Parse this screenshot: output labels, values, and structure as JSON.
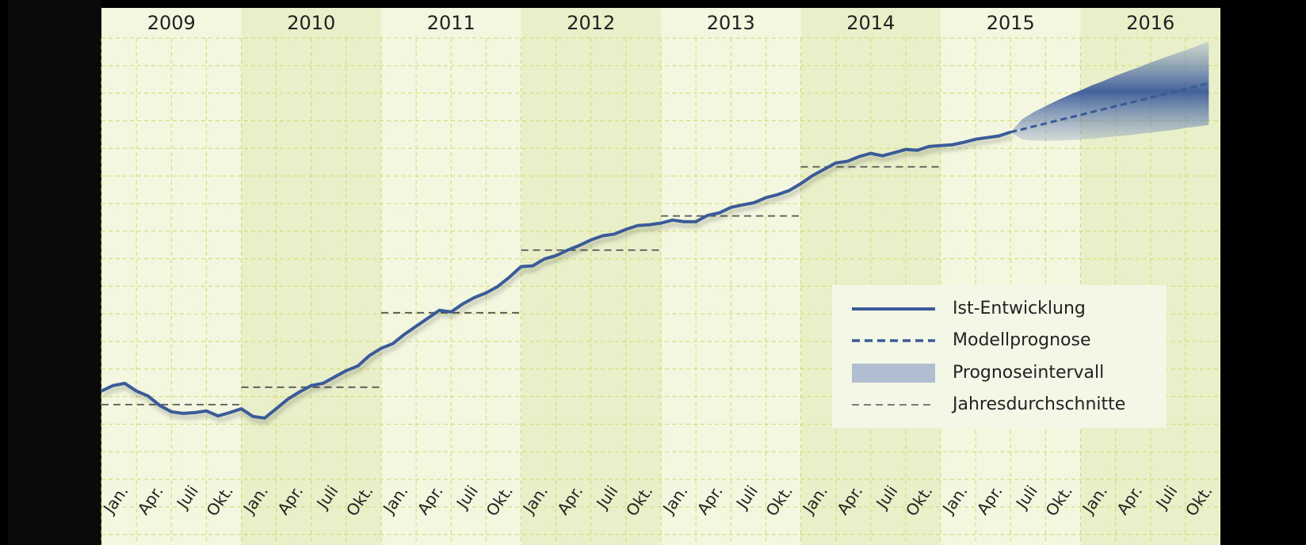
{
  "chart_data": {
    "type": "line",
    "year_labels": [
      "2009",
      "2010",
      "2011",
      "2012",
      "2013",
      "2014",
      "2015",
      "2016"
    ],
    "categories": [
      "Jan.",
      null,
      null,
      "Apr.",
      null,
      null,
      "Juli",
      null,
      null,
      "Okt.",
      null,
      null,
      "Jan.",
      null,
      null,
      "Apr.",
      null,
      null,
      "Juli",
      null,
      null,
      "Okt.",
      null,
      null,
      "Jan.",
      null,
      null,
      "Apr.",
      null,
      null,
      "Juli",
      null,
      null,
      "Okt.",
      null,
      null,
      "Jan.",
      null,
      null,
      "Apr.",
      null,
      null,
      "Juli",
      null,
      null,
      "Okt.",
      null,
      null,
      "Jan.",
      null,
      null,
      "Apr.",
      null,
      null,
      "Juli",
      null,
      null,
      "Okt.",
      null,
      null,
      "Jan.",
      null,
      null,
      "Apr.",
      null,
      null,
      "Juli",
      null,
      null,
      "Okt.",
      null,
      null,
      "Jan.",
      null,
      null,
      "Apr.",
      null,
      null,
      "Juli",
      null,
      null,
      "Okt.",
      null,
      null,
      "Jan.",
      null,
      null,
      "Apr.",
      null,
      null,
      "Juli",
      null,
      null,
      "Okt.",
      null,
      null
    ],
    "series": [
      {
        "name": "Ist-Entwicklung",
        "color": "#3a5a98",
        "values": [
          4.2,
          4.4,
          4.48,
          4.2,
          4.02,
          3.68,
          3.45,
          3.39,
          3.42,
          3.48,
          3.3,
          3.42,
          3.56,
          3.28,
          3.22,
          3.56,
          3.91,
          4.17,
          4.4,
          4.48,
          4.71,
          4.94,
          5.11,
          5.49,
          5.75,
          5.92,
          6.26,
          6.55,
          6.84,
          7.13,
          7.07,
          7.36,
          7.59,
          7.76,
          7.99,
          8.33,
          8.71,
          8.74,
          8.99,
          9.11,
          9.31,
          9.48,
          9.68,
          9.83,
          9.89,
          10.06,
          10.2,
          10.23,
          10.29,
          10.4,
          10.34,
          10.34,
          10.57,
          10.66,
          10.86,
          10.95,
          11.03,
          11.21,
          11.32,
          11.47,
          11.72,
          12.01,
          12.24,
          12.47,
          12.53,
          12.7,
          12.82,
          12.73,
          12.84,
          12.96,
          12.93,
          13.07,
          13.1,
          13.13,
          13.22,
          13.33,
          13.39,
          13.45,
          13.59,
          null,
          null,
          null,
          null,
          null,
          null,
          null,
          null,
          null,
          null,
          null,
          null,
          null,
          null,
          null,
          null,
          null
        ]
      },
      {
        "name": "Modellprognose",
        "color": "#3a5a98",
        "values": [
          null,
          null,
          null,
          null,
          null,
          null,
          null,
          null,
          null,
          null,
          null,
          null,
          null,
          null,
          null,
          null,
          null,
          null,
          null,
          null,
          null,
          null,
          null,
          null,
          null,
          null,
          null,
          null,
          null,
          null,
          null,
          null,
          null,
          null,
          null,
          null,
          null,
          null,
          null,
          null,
          null,
          null,
          null,
          null,
          null,
          null,
          null,
          null,
          null,
          null,
          null,
          null,
          null,
          null,
          null,
          null,
          null,
          null,
          null,
          null,
          null,
          null,
          null,
          null,
          null,
          null,
          null,
          null,
          null,
          null,
          null,
          null,
          null,
          null,
          null,
          null,
          null,
          null,
          13.59,
          13.69,
          13.8,
          13.9,
          14.01,
          14.11,
          14.21,
          14.32,
          14.42,
          14.53,
          14.63,
          14.73,
          14.84,
          14.94,
          15.04,
          15.15,
          15.25,
          15.36
        ]
      }
    ],
    "interval": {
      "name": "Prognoseintervall",
      "color": "#6f86bd",
      "upper": [
        13.59,
        14.06,
        14.32,
        14.53,
        14.74,
        14.93,
        15.1,
        15.29,
        15.45,
        15.63,
        15.79,
        15.94,
        16.11,
        16.26,
        16.41,
        16.56,
        16.71,
        16.87
      ],
      "lower": [
        13.59,
        13.32,
        13.28,
        13.27,
        13.28,
        13.29,
        13.32,
        13.35,
        13.39,
        13.43,
        13.47,
        13.52,
        13.57,
        13.62,
        13.67,
        13.74,
        13.79,
        13.85
      ]
    },
    "averages": {
      "name": "Jahresdurchschnitte",
      "color": "#555555",
      "values": [
        3.71,
        4.34,
        7.04,
        9.31,
        10.55,
        12.33
      ]
    },
    "ylim": [
      -1.38,
      17
    ],
    "grid": true
  }
}
